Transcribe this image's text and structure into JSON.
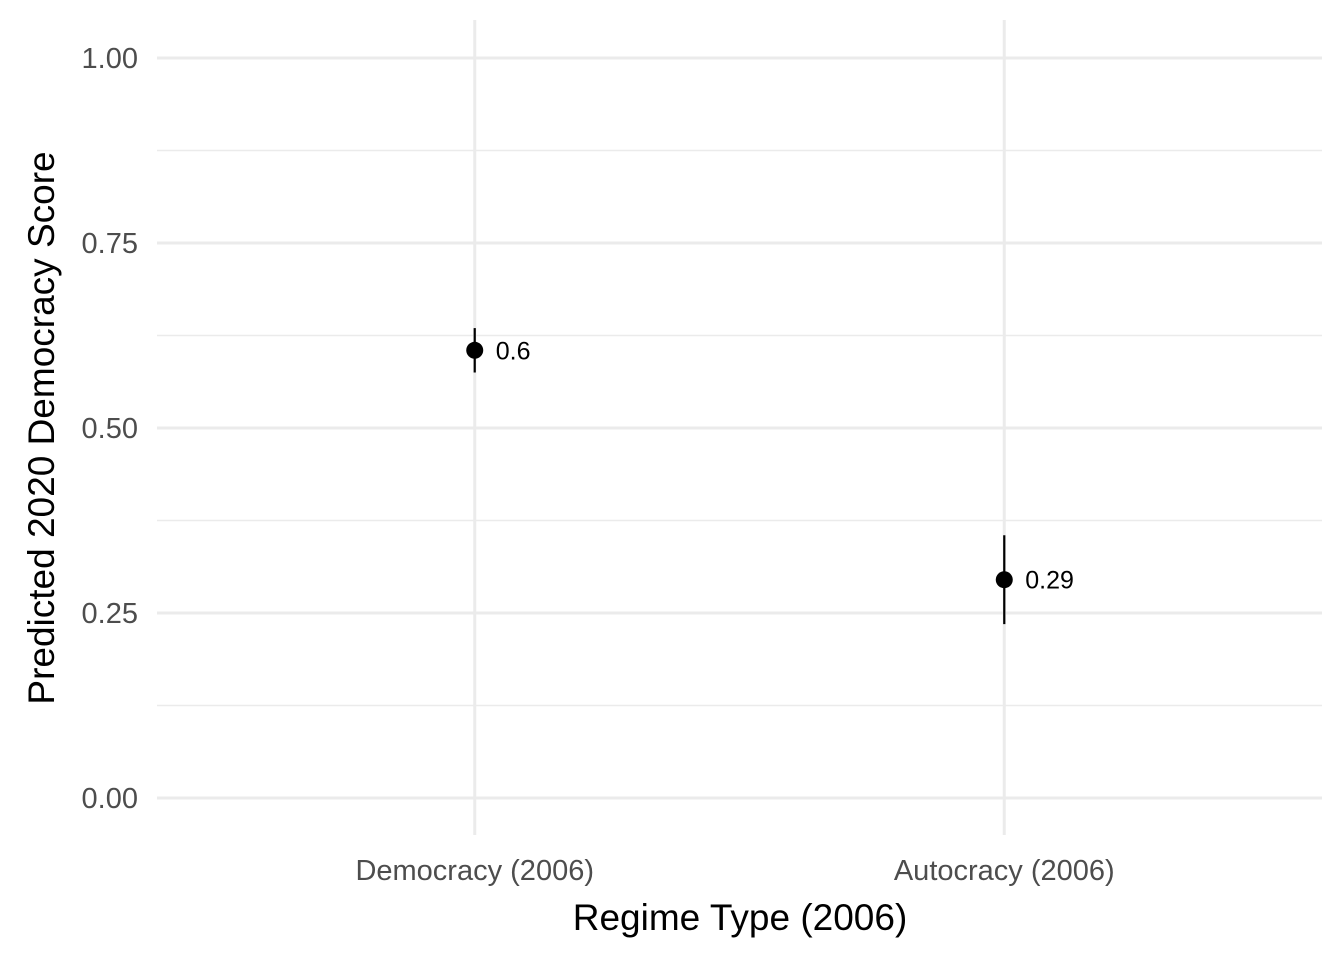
{
  "chart_data": {
    "type": "scatter",
    "categories": [
      "Democracy (2006)",
      "Autocracy (2006)"
    ],
    "values": [
      0.605,
      0.295
    ],
    "lower": [
      0.575,
      0.235
    ],
    "upper": [
      0.635,
      0.355
    ],
    "point_labels": [
      "0.6",
      "0.29"
    ],
    "xlabel": "Regime Type (2006)",
    "ylabel": "Predicted 2020 Democracy Score",
    "ylim": [
      -0.05,
      1.05
    ],
    "yticks": [
      0,
      0.25,
      0.5,
      0.75,
      1
    ],
    "ytick_labels": [
      "0.00",
      "0.25",
      "0.50",
      "0.75",
      "1.00"
    ],
    "yminor": [
      0.125,
      0.375,
      0.625,
      0.875
    ],
    "grid": true,
    "legend": "none",
    "colors": {
      "point": "#000000",
      "grid": "#ebebeb",
      "tick_text": "#4d4d4d"
    }
  }
}
